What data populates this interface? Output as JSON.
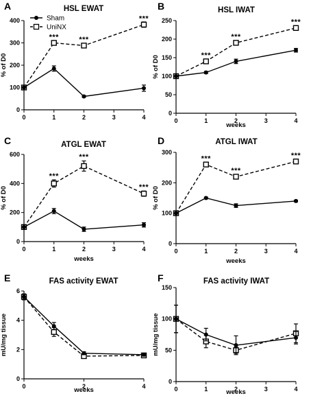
{
  "chart_data": [
    {
      "type": "line",
      "panel_label": "A",
      "title": "HSL EWAT",
      "xlabel": "",
      "ylabel": "% of D0",
      "x": [
        0,
        1,
        2,
        4
      ],
      "xticks": [
        0,
        1,
        2,
        3,
        4
      ],
      "ylim": [
        0,
        400
      ],
      "yticks": [
        0,
        100,
        200,
        300,
        400
      ],
      "legend": {
        "position": "top-left",
        "entries": [
          "Sham",
          "UniNX"
        ]
      },
      "series": [
        {
          "name": "Sham",
          "marker": "filled-circle",
          "line": "solid",
          "values": [
            100,
            185,
            60,
            97
          ],
          "errors": [
            0,
            12,
            4,
            14
          ]
        },
        {
          "name": "UniNX",
          "marker": "open-square",
          "line": "dashed",
          "values": [
            100,
            300,
            288,
            382
          ],
          "errors": [
            0,
            8,
            8,
            12
          ]
        }
      ],
      "annotations": [
        {
          "x": 1,
          "y": 315,
          "text": "***"
        },
        {
          "x": 2,
          "y": 304,
          "text": "***"
        },
        {
          "x": 4,
          "y": 398,
          "text": "***"
        }
      ]
    },
    {
      "type": "line",
      "panel_label": "B",
      "title": "HSL  IWAT",
      "xlabel": "weeks",
      "ylabel": "% of D0",
      "x": [
        0,
        1,
        2,
        4
      ],
      "xticks": [
        0,
        1,
        2,
        3,
        4
      ],
      "ylim": [
        0,
        250
      ],
      "yticks": [
        0,
        50,
        100,
        150,
        200,
        250
      ],
      "series": [
        {
          "name": "Sham",
          "marker": "filled-circle",
          "line": "solid",
          "values": [
            100,
            110,
            140,
            170
          ],
          "errors": [
            0,
            3,
            6,
            5
          ]
        },
        {
          "name": "UniNX",
          "marker": "open-square",
          "line": "dashed",
          "values": [
            100,
            140,
            190,
            230
          ],
          "errors": [
            0,
            4,
            5,
            5
          ]
        }
      ],
      "annotations": [
        {
          "x": 1,
          "y": 150,
          "text": "***"
        },
        {
          "x": 2,
          "y": 200,
          "text": "***"
        },
        {
          "x": 4,
          "y": 240,
          "text": "***"
        }
      ]
    },
    {
      "type": "line",
      "panel_label": "C",
      "title": "ATGL EWAT",
      "xlabel": "weeks",
      "ylabel": "% of D0",
      "x": [
        0,
        1,
        2,
        4
      ],
      "xticks": [
        0,
        1,
        2,
        3,
        4
      ],
      "ylim": [
        0,
        600
      ],
      "yticks": [
        0,
        200,
        400,
        600
      ],
      "series": [
        {
          "name": "Sham",
          "marker": "filled-circle",
          "line": "solid",
          "values": [
            100,
            210,
            85,
            115
          ],
          "errors": [
            0,
            18,
            15,
            15
          ]
        },
        {
          "name": "UniNX",
          "marker": "open-square",
          "line": "dashed",
          "values": [
            100,
            400,
            520,
            330
          ],
          "errors": [
            0,
            25,
            35,
            18
          ]
        }
      ],
      "annotations": [
        {
          "x": 1,
          "y": 435,
          "text": "***"
        },
        {
          "x": 2,
          "y": 568,
          "text": "***"
        },
        {
          "x": 4,
          "y": 358,
          "text": "***"
        }
      ]
    },
    {
      "type": "line",
      "panel_label": "D",
      "title": "ATGL IWAT",
      "xlabel": "weeks",
      "ylabel": "% of D0",
      "x": [
        0,
        1,
        2,
        4
      ],
      "xticks": [
        0,
        1,
        2,
        3,
        4
      ],
      "ylim": [
        0,
        300
      ],
      "yticks": [
        0,
        100,
        200,
        300
      ],
      "series": [
        {
          "name": "Sham",
          "marker": "filled-circle",
          "line": "solid",
          "values": [
            100,
            150,
            125,
            140
          ],
          "errors": [
            0,
            3,
            6,
            3
          ]
        },
        {
          "name": "UniNX",
          "marker": "open-square",
          "line": "dashed",
          "values": [
            100,
            260,
            220,
            270
          ],
          "errors": [
            0,
            5,
            5,
            5
          ]
        }
      ],
      "annotations": [
        {
          "x": 1,
          "y": 272,
          "text": "***"
        },
        {
          "x": 2,
          "y": 232,
          "text": "***"
        },
        {
          "x": 4,
          "y": 282,
          "text": "***"
        }
      ]
    },
    {
      "type": "line",
      "panel_label": "E",
      "title": "FAS activity EWAT",
      "xlabel": "weeks",
      "ylabel": "mU/mg tissue",
      "x": [
        0,
        1,
        2,
        4
      ],
      "xticks": [
        0,
        2,
        4
      ],
      "ylim": [
        0,
        6
      ],
      "yticks": [
        0,
        2,
        4,
        6
      ],
      "series": [
        {
          "name": "Sham",
          "marker": "filled-circle",
          "line": "solid",
          "values": [
            5.6,
            3.6,
            1.75,
            1.65
          ],
          "errors": [
            0.2,
            0.25,
            0.1,
            0.1
          ]
        },
        {
          "name": "UniNX",
          "marker": "open-square",
          "line": "dashed",
          "values": [
            5.6,
            3.2,
            1.55,
            1.6
          ],
          "errors": [
            0.2,
            0.3,
            0.1,
            0.1
          ]
        }
      ],
      "annotations": []
    },
    {
      "type": "line",
      "panel_label": "F",
      "title": "FAS activity IWAT",
      "xlabel": "weeks",
      "ylabel": "mU/mg tissue",
      "x": [
        0,
        1,
        2,
        4
      ],
      "xticks": [
        0,
        1,
        2,
        3,
        4
      ],
      "ylim": [
        0,
        150
      ],
      "yticks": [
        0,
        50,
        100,
        150
      ],
      "series": [
        {
          "name": "Sham",
          "marker": "filled-circle",
          "line": "solid",
          "values": [
            100,
            75,
            58,
            70
          ],
          "errors": [
            22,
            10,
            15,
            10
          ]
        },
        {
          "name": "UniNX",
          "marker": "open-square",
          "line": "dashed",
          "values": [
            100,
            64,
            50,
            77
          ],
          "errors": [
            22,
            10,
            5,
            15
          ]
        }
      ],
      "annotations": []
    }
  ]
}
